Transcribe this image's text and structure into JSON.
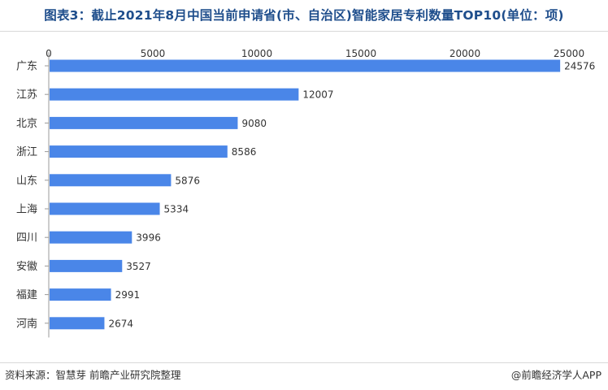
{
  "title": "图表3：截止2021年8月中国当前申请省(市、自治区)智能家居专利数量TOP10(单位：项)",
  "source": "资料来源：智慧芽 前瞻产业研究院整理",
  "brand": "@前瞻经济学人APP",
  "colors": {
    "bar": "#4a86e8",
    "title": "#1f4e8c",
    "axis": "#999999",
    "text": "#333333"
  },
  "chart_data": {
    "type": "bar",
    "orientation": "horizontal",
    "categories": [
      "广东",
      "江苏",
      "北京",
      "浙江",
      "山东",
      "上海",
      "四川",
      "安徽",
      "福建",
      "河南"
    ],
    "values": [
      24576,
      12007,
      9080,
      8586,
      5876,
      5334,
      3996,
      3527,
      2991,
      2674
    ],
    "x_ticks": [
      "0",
      "5000",
      "10000",
      "15000",
      "20000",
      "25000"
    ],
    "xlim": [
      0,
      25000
    ],
    "x_axis_position": "top",
    "grid": false,
    "legend": "none",
    "data_labels": true
  }
}
